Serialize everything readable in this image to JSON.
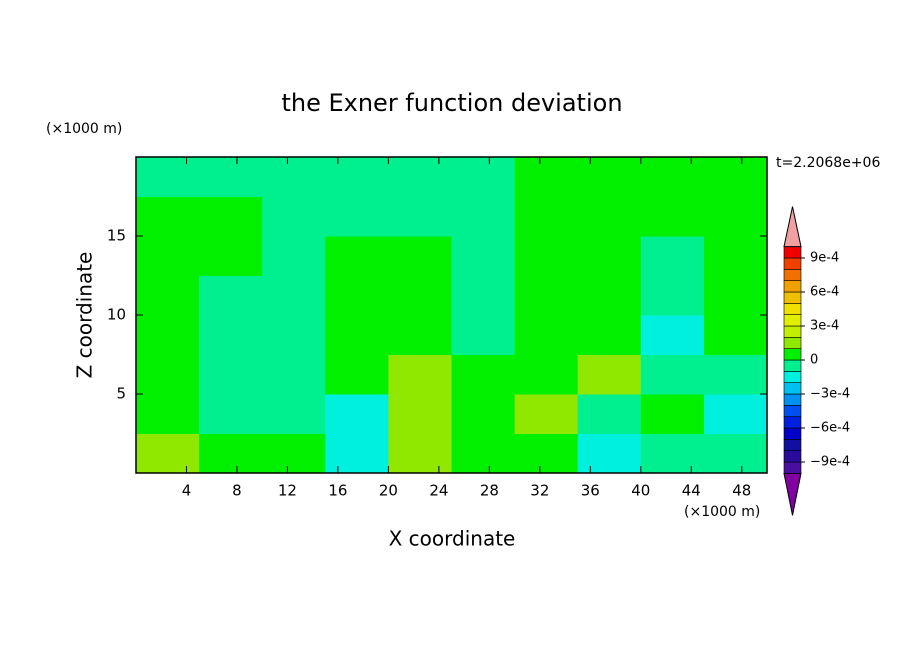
{
  "chart_data": {
    "type": "contour",
    "title": "the Exner function deviation",
    "x_label": "X coordinate",
    "y_label": "Z coordinate",
    "x_unit": "(×1000 m)",
    "y_unit": "(×1000 m)",
    "time_label": "t=2.2068e+06",
    "xlim": [
      0,
      50
    ],
    "ylim": [
      0,
      20
    ],
    "xticks": [
      4,
      8,
      12,
      16,
      20,
      24,
      28,
      32,
      36,
      40,
      44,
      48
    ],
    "yticks": [
      5,
      10,
      15
    ],
    "x": [
      2.5,
      7.5,
      12.5,
      17.5,
      22.5,
      27.5,
      32.5,
      37.5,
      42.5,
      47.5
    ],
    "y": [
      1.25,
      3.75,
      6.25,
      8.75,
      11.25,
      13.75,
      16.25,
      18.75
    ],
    "values": [
      [
        0.00015,
        5e-05,
        5e-05,
        -0.00015,
        0.00015,
        5e-05,
        5e-05,
        -0.00015,
        -5e-05,
        -5e-05
      ],
      [
        5e-05,
        -5e-05,
        -5e-05,
        -0.00015,
        0.00015,
        5e-05,
        0.00015,
        -5e-05,
        5e-05,
        -0.00015
      ],
      [
        5e-05,
        -5e-05,
        -5e-05,
        5e-05,
        0.00015,
        5e-05,
        5e-05,
        0.00015,
        -5e-05,
        -5e-05
      ],
      [
        5e-05,
        -5e-05,
        -5e-05,
        5e-05,
        5e-05,
        -5e-05,
        5e-05,
        5e-05,
        -0.00015,
        5e-05
      ],
      [
        5e-05,
        -5e-05,
        -5e-05,
        5e-05,
        5e-05,
        -5e-05,
        5e-05,
        5e-05,
        -5e-05,
        5e-05
      ],
      [
        5e-05,
        5e-05,
        -5e-05,
        5e-05,
        5e-05,
        -5e-05,
        5e-05,
        5e-05,
        -5e-05,
        5e-05
      ],
      [
        5e-05,
        5e-05,
        -5e-05,
        -5e-05,
        -5e-05,
        -5e-05,
        5e-05,
        5e-05,
        5e-05,
        5e-05
      ],
      [
        -5e-05,
        -5e-05,
        -5e-05,
        -5e-05,
        -5e-05,
        -5e-05,
        5e-05,
        5e-05,
        5e-05,
        5e-05
      ]
    ],
    "levels": [
      -0.001,
      -0.0009,
      -0.0008,
      -0.0007,
      -0.0006,
      -0.0005,
      -0.0004,
      -0.0003,
      -0.0002,
      -0.0001,
      0,
      0.0001,
      0.0002,
      0.0003,
      0.0004,
      0.0005,
      0.0006,
      0.0007,
      0.0008,
      0.0009,
      0.001
    ],
    "colors": [
      "#8000a0",
      "#4b0fa0",
      "#2a0a9c",
      "#1010a0",
      "#0000c8",
      "#0020e0",
      "#0050f0",
      "#0090f0",
      "#00c0f0",
      "#00f0e0",
      "#00f090",
      "#00f000",
      "#90e800",
      "#c0f000",
      "#e0f000",
      "#f0e000",
      "#f0c000",
      "#f0a000",
      "#f07000",
      "#f04000",
      "#f00000",
      "#f0a0a0"
    ],
    "colorbar_ticks": [
      {
        "value": 0.0009,
        "label": "9e-4"
      },
      {
        "value": 0.0006,
        "label": "6e-4"
      },
      {
        "value": 0.0003,
        "label": "3e-4"
      },
      0,
      {
        "value": -0.0003,
        "label": "−3e-4"
      },
      {
        "value": -0.0006,
        "label": "−6e-4"
      },
      {
        "value": -0.0009,
        "label": "−9e-4"
      }
    ]
  }
}
